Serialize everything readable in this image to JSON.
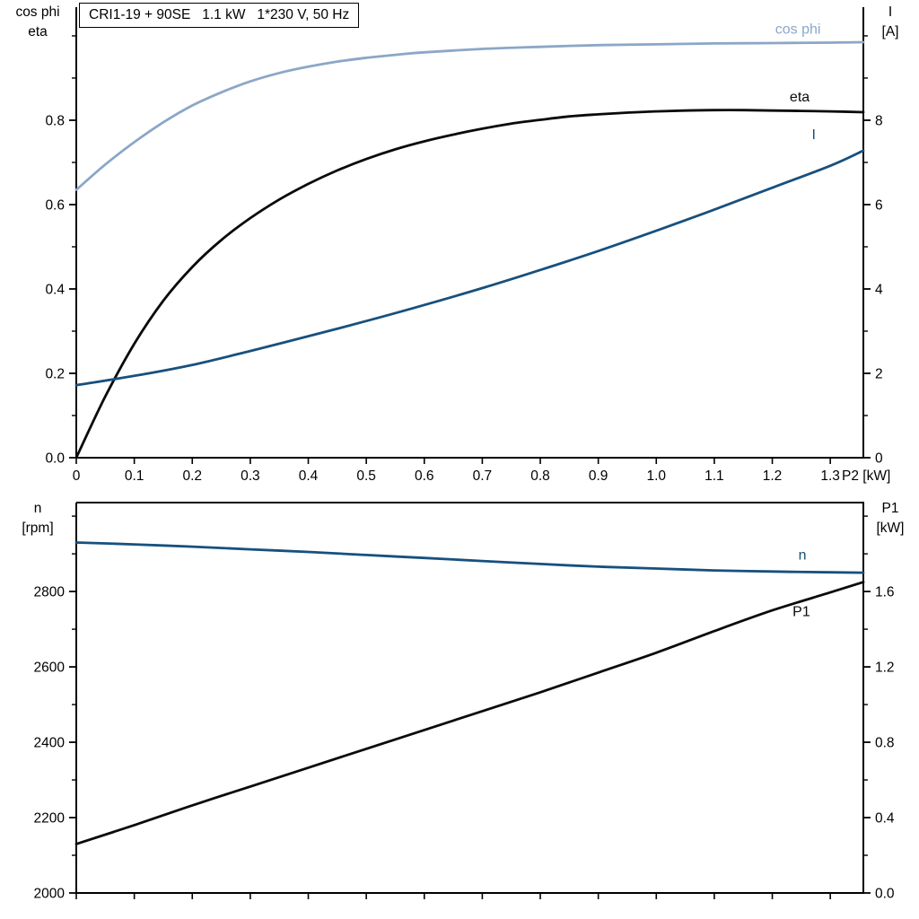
{
  "title_box": {
    "text": "CRI1-19 + 90SE   1.1 kW   1*230 V, 50 Hz"
  },
  "colors": {
    "axis": "#000000",
    "black_curve": "#0a0a0a",
    "dark_blue": "#17507e",
    "light_blue": "#8ba7c7"
  },
  "axis_corner_labels": {
    "top_left": [
      "cos phi",
      "eta"
    ],
    "top_right": [
      "I",
      "[A]"
    ],
    "bottom_left": [
      "n",
      "[rpm]"
    ],
    "bottom_right": [
      "P1",
      "[kW]"
    ]
  },
  "chart_data": [
    {
      "type": "line",
      "name": "top-chart-cosphi-eta-current",
      "xlabel": "P2 [kW]",
      "x_axis_label": "P2 [kW]",
      "xlim": [
        0,
        1.357
      ],
      "x_ticks": {
        "values": [
          0,
          0.1,
          0.2,
          0.3,
          0.4,
          0.5,
          0.6,
          0.7,
          0.8,
          0.9,
          1.0,
          1.1,
          1.2,
          1.3
        ],
        "labels": [
          "0",
          "0.1",
          "0.2",
          "0.3",
          "0.4",
          "0.5",
          "0.6",
          "0.7",
          "0.8",
          "0.9",
          "1.0",
          "1.1",
          "1.2",
          "1.3"
        ]
      },
      "left_axis": {
        "title": "cos phi / eta",
        "lim": [
          0,
          1.068
        ],
        "ticks": [
          0,
          0.2,
          0.4,
          0.6,
          0.8
        ],
        "labels": [
          "0.0",
          "0.2",
          "0.4",
          "0.6",
          "0.8"
        ],
        "minor": [
          0.1,
          0.3,
          0.5,
          0.7,
          0.9,
          1.0
        ]
      },
      "right_axis": {
        "title": "I [A]",
        "lim": [
          0,
          10.68
        ],
        "ticks": [
          0,
          2,
          4,
          6,
          8
        ],
        "labels": [
          "0",
          "2",
          "4",
          "6",
          "8"
        ],
        "minor": [
          1,
          3,
          5,
          7,
          9,
          10
        ]
      },
      "series": [
        {
          "name": "cos-phi",
          "label": "cos phi",
          "axis": "left",
          "color": "light_blue",
          "label_at": [
            1.205,
            1.005
          ],
          "points": [
            [
              0,
              0.635
            ],
            [
              0.05,
              0.695
            ],
            [
              0.1,
              0.748
            ],
            [
              0.15,
              0.795
            ],
            [
              0.2,
              0.835
            ],
            [
              0.25,
              0.866
            ],
            [
              0.3,
              0.892
            ],
            [
              0.35,
              0.912
            ],
            [
              0.4,
              0.927
            ],
            [
              0.45,
              0.939
            ],
            [
              0.5,
              0.948
            ],
            [
              0.55,
              0.955
            ],
            [
              0.6,
              0.961
            ],
            [
              0.7,
              0.969
            ],
            [
              0.8,
              0.974
            ],
            [
              0.9,
              0.978
            ],
            [
              1.0,
              0.98
            ],
            [
              1.1,
              0.982
            ],
            [
              1.2,
              0.983
            ],
            [
              1.3,
              0.984
            ],
            [
              1.357,
              0.985
            ]
          ]
        },
        {
          "name": "eta",
          "label": "eta",
          "axis": "left",
          "color": "black_curve",
          "label_at": [
            1.23,
            0.845
          ],
          "points": [
            [
              0,
              0
            ],
            [
              0.05,
              0.145
            ],
            [
              0.1,
              0.27
            ],
            [
              0.15,
              0.372
            ],
            [
              0.2,
              0.452
            ],
            [
              0.25,
              0.516
            ],
            [
              0.3,
              0.568
            ],
            [
              0.35,
              0.612
            ],
            [
              0.4,
              0.649
            ],
            [
              0.45,
              0.681
            ],
            [
              0.5,
              0.708
            ],
            [
              0.55,
              0.731
            ],
            [
              0.6,
              0.75
            ],
            [
              0.65,
              0.766
            ],
            [
              0.7,
              0.78
            ],
            [
              0.75,
              0.792
            ],
            [
              0.8,
              0.801
            ],
            [
              0.85,
              0.809
            ],
            [
              0.9,
              0.814
            ],
            [
              0.95,
              0.818
            ],
            [
              1.0,
              0.821
            ],
            [
              1.05,
              0.823
            ],
            [
              1.1,
              0.824
            ],
            [
              1.15,
              0.824
            ],
            [
              1.2,
              0.823
            ],
            [
              1.25,
              0.822
            ],
            [
              1.3,
              0.821
            ],
            [
              1.357,
              0.819
            ]
          ]
        },
        {
          "name": "I",
          "label": "I",
          "axis": "right",
          "color": "dark_blue",
          "label_at": [
            1.268,
            7.55
          ],
          "points": [
            [
              0,
              1.72
            ],
            [
              0.1,
              1.94
            ],
            [
              0.2,
              2.2
            ],
            [
              0.3,
              2.53
            ],
            [
              0.4,
              2.88
            ],
            [
              0.5,
              3.24
            ],
            [
              0.6,
              3.62
            ],
            [
              0.7,
              4.02
            ],
            [
              0.8,
              4.45
            ],
            [
              0.9,
              4.9
            ],
            [
              1.0,
              5.38
            ],
            [
              1.1,
              5.88
            ],
            [
              1.2,
              6.4
            ],
            [
              1.3,
              6.92
            ],
            [
              1.357,
              7.28
            ]
          ]
        }
      ]
    },
    {
      "type": "line",
      "name": "bottom-chart-speed-power",
      "xlabel": "",
      "xlim": [
        0,
        1.357
      ],
      "x_ticks": {
        "values": [
          0,
          0.1,
          0.2,
          0.3,
          0.4,
          0.5,
          0.6,
          0.7,
          0.8,
          0.9,
          1.0,
          1.1,
          1.2,
          1.3
        ],
        "labels": null
      },
      "left_axis": {
        "title": "n [rpm]",
        "lim": [
          2000,
          3036
        ],
        "ticks": [
          2000,
          2200,
          2400,
          2600,
          2800
        ],
        "labels": [
          "2000",
          "2200",
          "2400",
          "2600",
          "2800"
        ],
        "minor": [
          2100,
          2300,
          2500,
          2700,
          2900,
          3000
        ]
      },
      "right_axis": {
        "title": "P1 [kW]",
        "lim": [
          0,
          2.072
        ],
        "ticks": [
          0,
          0.4,
          0.8,
          1.2,
          1.6
        ],
        "labels": [
          "0.0",
          "0.4",
          "0.8",
          "1.2",
          "1.6"
        ],
        "minor": [
          0.2,
          0.6,
          1.0,
          1.4,
          1.8,
          2.0
        ]
      },
      "series": [
        {
          "name": "n",
          "label": "n",
          "axis": "left",
          "color": "dark_blue",
          "label_at": [
            1.245,
            2885
          ],
          "points": [
            [
              0,
              2930
            ],
            [
              0.1,
              2925
            ],
            [
              0.2,
              2919
            ],
            [
              0.3,
              2912
            ],
            [
              0.4,
              2905
            ],
            [
              0.5,
              2897
            ],
            [
              0.6,
              2889
            ],
            [
              0.7,
              2881
            ],
            [
              0.8,
              2873
            ],
            [
              0.9,
              2866
            ],
            [
              1.0,
              2861
            ],
            [
              1.1,
              2856
            ],
            [
              1.2,
              2853
            ],
            [
              1.3,
              2851
            ],
            [
              1.357,
              2850
            ]
          ]
        },
        {
          "name": "P1",
          "label": "P1",
          "axis": "right",
          "color": "black_curve",
          "label_at": [
            1.235,
            1.47
          ],
          "points": [
            [
              0,
              0.26
            ],
            [
              0.1,
              0.36
            ],
            [
              0.2,
              0.465
            ],
            [
              0.3,
              0.565
            ],
            [
              0.4,
              0.665
            ],
            [
              0.5,
              0.765
            ],
            [
              0.6,
              0.865
            ],
            [
              0.7,
              0.965
            ],
            [
              0.8,
              1.065
            ],
            [
              0.9,
              1.17
            ],
            [
              1.0,
              1.275
            ],
            [
              1.1,
              1.39
            ],
            [
              1.2,
              1.5
            ],
            [
              1.3,
              1.595
            ],
            [
              1.357,
              1.65
            ]
          ]
        }
      ]
    }
  ]
}
